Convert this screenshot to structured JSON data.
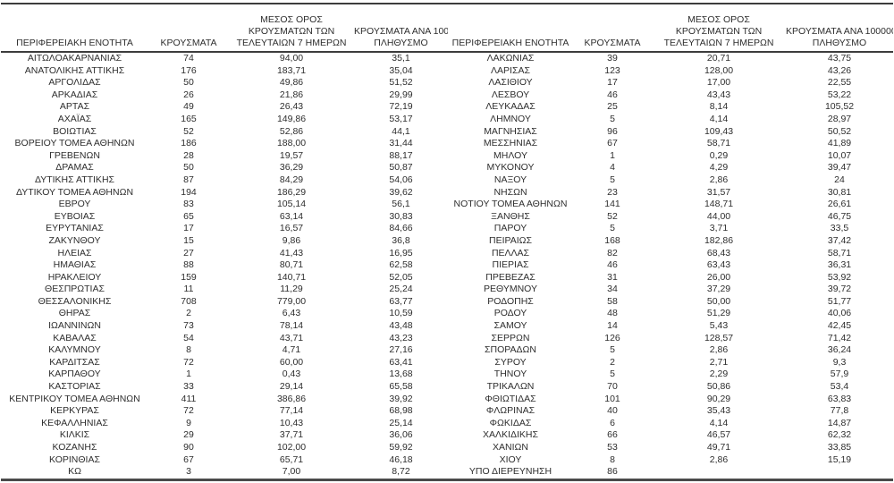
{
  "page": {
    "background_color": "#ffffff",
    "text_color": "#2e2e2e",
    "border_color": "#3d3d3d"
  },
  "table": {
    "headers": {
      "region": "ΠΕΡΙΦΕΡΕΙΑΚΗ ΕΝΟΤΗΤΑ",
      "cases": "ΚΡΟΥΣΜΑΤΑ",
      "avg7_lines": [
        "ΜΕΣΟΣ ΟΡΟΣ",
        "ΚΡΟΥΣΜΑΤΩΝ ΤΩΝ",
        "ΤΕΛΕΥΤΑΙΩΝ 7 ΗΜΕΡΩΝ"
      ],
      "per100k_lines": [
        "ΚΡΟΥΣΜΑΤΑ ΑΝΑ 100000",
        "ΠΛΗΘΥΣΜΟ"
      ]
    },
    "left_rows": [
      [
        "ΑΙΤΩΛΟΑΚΑΡΝΑΝΙΑΣ",
        "74",
        "94,00",
        "35,1"
      ],
      [
        "ΑΝΑΤΟΛΙΚΗΣ ΑΤΤΙΚΗΣ",
        "176",
        "183,71",
        "35,04"
      ],
      [
        "ΑΡΓΟΛΙΔΑΣ",
        "50",
        "49,86",
        "51,52"
      ],
      [
        "ΑΡΚΑΔΙΑΣ",
        "26",
        "21,86",
        "29,99"
      ],
      [
        "ΑΡΤΑΣ",
        "49",
        "26,43",
        "72,19"
      ],
      [
        "ΑΧΑΪΑΣ",
        "165",
        "149,86",
        "53,17"
      ],
      [
        "ΒΟΙΩΤΙΑΣ",
        "52",
        "52,86",
        "44,1"
      ],
      [
        "ΒΟΡΕΙΟΥ ΤΟΜΕΑ ΑΘΗΝΩΝ",
        "186",
        "188,00",
        "31,44"
      ],
      [
        "ΓΡΕΒΕΝΩΝ",
        "28",
        "19,57",
        "88,17"
      ],
      [
        "ΔΡΑΜΑΣ",
        "50",
        "36,29",
        "50,87"
      ],
      [
        "ΔΥΤΙΚΗΣ ΑΤΤΙΚΗΣ",
        "87",
        "84,29",
        "54,06"
      ],
      [
        "ΔΥΤΙΚΟΥ ΤΟΜΕΑ ΑΘΗΝΩΝ",
        "194",
        "186,29",
        "39,62"
      ],
      [
        "ΕΒΡΟΥ",
        "83",
        "105,14",
        "56,1"
      ],
      [
        "ΕΥΒΟΙΑΣ",
        "65",
        "63,14",
        "30,83"
      ],
      [
        "ΕΥΡΥΤΑΝΙΑΣ",
        "17",
        "16,57",
        "84,66"
      ],
      [
        "ΖΑΚΥΝΘΟΥ",
        "15",
        "9,86",
        "36,8"
      ],
      [
        "ΗΛΕΙΑΣ",
        "27",
        "41,43",
        "16,95"
      ],
      [
        "ΗΜΑΘΙΑΣ",
        "88",
        "80,71",
        "62,58"
      ],
      [
        "ΗΡΑΚΛΕΙΟΥ",
        "159",
        "140,71",
        "52,05"
      ],
      [
        "ΘΕΣΠΡΩΤΙΑΣ",
        "11",
        "11,29",
        "25,24"
      ],
      [
        "ΘΕΣΣΑΛΟΝΙΚΗΣ",
        "708",
        "779,00",
        "63,77"
      ],
      [
        "ΘΗΡΑΣ",
        "2",
        "6,43",
        "10,59"
      ],
      [
        "ΙΩΑΝΝΙΝΩΝ",
        "73",
        "78,14",
        "43,48"
      ],
      [
        "ΚΑΒΑΛΑΣ",
        "54",
        "43,71",
        "43,23"
      ],
      [
        "ΚΑΛΥΜΝΟΥ",
        "8",
        "4,71",
        "27,16"
      ],
      [
        "ΚΑΡΔΙΤΣΑΣ",
        "72",
        "60,00",
        "63,41"
      ],
      [
        "ΚΑΡΠΑΘΟΥ",
        "1",
        "0,43",
        "13,68"
      ],
      [
        "ΚΑΣΤΟΡΙΑΣ",
        "33",
        "29,14",
        "65,58"
      ],
      [
        "ΚΕΝΤΡΙΚΟΥ ΤΟΜΕΑ ΑΘΗΝΩΝ",
        "411",
        "386,86",
        "39,92"
      ],
      [
        "ΚΕΡΚΥΡΑΣ",
        "72",
        "77,14",
        "68,98"
      ],
      [
        "ΚΕΦΑΛΛΗΝΙΑΣ",
        "9",
        "10,43",
        "25,14"
      ],
      [
        "ΚΙΛΚΙΣ",
        "29",
        "37,71",
        "36,06"
      ],
      [
        "ΚΟΖΑΝΗΣ",
        "90",
        "102,00",
        "59,92"
      ],
      [
        "ΚΟΡΙΝΘΙΑΣ",
        "67",
        "65,71",
        "46,18"
      ],
      [
        "ΚΩ",
        "3",
        "7,00",
        "8,72"
      ]
    ],
    "right_rows": [
      [
        "ΛΑΚΩΝΙΑΣ",
        "39",
        "20,71",
        "43,75"
      ],
      [
        "ΛΑΡΙΣΑΣ",
        "123",
        "128,00",
        "43,26"
      ],
      [
        "ΛΑΣΙΘΙΟΥ",
        "17",
        "17,00",
        "22,55"
      ],
      [
        "ΛΕΣΒΟΥ",
        "46",
        "43,43",
        "53,22"
      ],
      [
        "ΛΕΥΚΑΔΑΣ",
        "25",
        "8,14",
        "105,52"
      ],
      [
        "ΛΗΜΝΟΥ",
        "5",
        "4,14",
        "28,97"
      ],
      [
        "ΜΑΓΝΗΣΙΑΣ",
        "96",
        "109,43",
        "50,52"
      ],
      [
        "ΜΕΣΣΗΝΙΑΣ",
        "67",
        "58,71",
        "41,89"
      ],
      [
        "ΜΗΛΟΥ",
        "1",
        "0,29",
        "10,07"
      ],
      [
        "ΜΥΚΟΝΟΥ",
        "4",
        "4,29",
        "39,47"
      ],
      [
        "ΝΑΞΟΥ",
        "5",
        "2,86",
        "24"
      ],
      [
        "ΝΗΣΩΝ",
        "23",
        "31,57",
        "30,81"
      ],
      [
        "ΝΟΤΙΟΥ ΤΟΜΕΑ ΑΘΗΝΩΝ",
        "141",
        "148,71",
        "26,61"
      ],
      [
        "ΞΑΝΘΗΣ",
        "52",
        "44,00",
        "46,75"
      ],
      [
        "ΠΑΡΟΥ",
        "5",
        "3,71",
        "33,5"
      ],
      [
        "ΠΕΙΡΑΙΩΣ",
        "168",
        "182,86",
        "37,42"
      ],
      [
        "ΠΕΛΛΑΣ",
        "82",
        "68,43",
        "58,71"
      ],
      [
        "ΠΙΕΡΙΑΣ",
        "46",
        "63,43",
        "36,31"
      ],
      [
        "ΠΡΕΒΕΖΑΣ",
        "31",
        "26,00",
        "53,92"
      ],
      [
        "ΡΕΘΥΜΝΟΥ",
        "34",
        "37,29",
        "39,72"
      ],
      [
        "ΡΟΔΟΠΗΣ",
        "58",
        "50,00",
        "51,77"
      ],
      [
        "ΡΟΔΟΥ",
        "48",
        "51,29",
        "40,06"
      ],
      [
        "ΣΑΜΟΥ",
        "14",
        "5,43",
        "42,45"
      ],
      [
        "ΣΕΡΡΩΝ",
        "126",
        "128,57",
        "71,42"
      ],
      [
        "ΣΠΟΡΑΔΩΝ",
        "5",
        "2,86",
        "36,24"
      ],
      [
        "ΣΥΡΟΥ",
        "2",
        "2,71",
        "9,3"
      ],
      [
        "ΤΗΝΟΥ",
        "5",
        "2,29",
        "57,9"
      ],
      [
        "ΤΡΙΚΑΛΩΝ",
        "70",
        "50,86",
        "53,4"
      ],
      [
        "ΦΘΙΩΤΙΔΑΣ",
        "101",
        "90,29",
        "63,83"
      ],
      [
        "ΦΛΩΡΙΝΑΣ",
        "40",
        "35,43",
        "77,8"
      ],
      [
        "ΦΩΚΙΔΑΣ",
        "6",
        "4,14",
        "14,87"
      ],
      [
        "ΧΑΛΚΙΔΙΚΗΣ",
        "66",
        "46,57",
        "62,32"
      ],
      [
        "ΧΑΝΙΩΝ",
        "53",
        "49,71",
        "33,85"
      ],
      [
        "ΧΙΟΥ",
        "8",
        "2,86",
        "15,19"
      ],
      [
        "ΥΠΟ ΔΙΕΡΕΥΝΗΣΗ",
        "86",
        "",
        ""
      ]
    ]
  }
}
